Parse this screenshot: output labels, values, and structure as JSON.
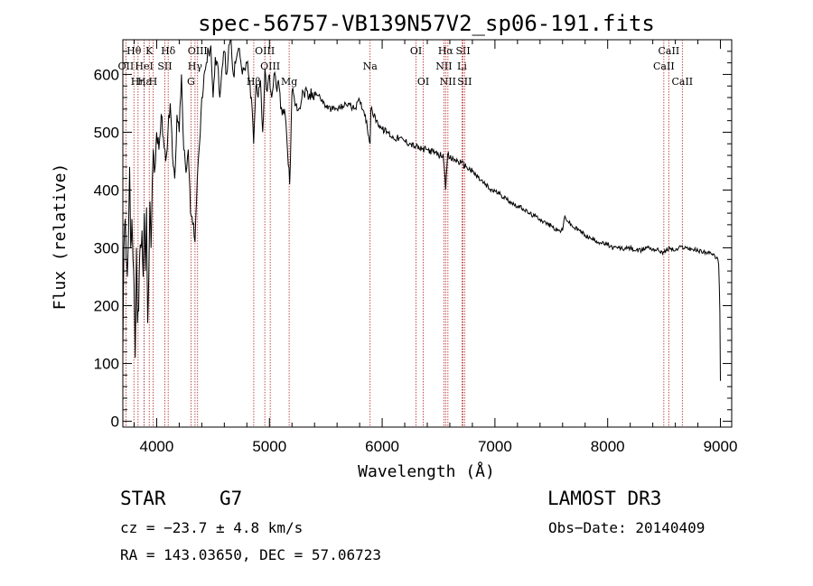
{
  "chart_data": {
    "type": "line",
    "title": "spec-56757-VB139N57V2_sp06-191.fits",
    "xlabel": "Wavelength (Å)",
    "ylabel": "Flux (relative)",
    "xlim": [
      3700,
      9100
    ],
    "ylim": [
      -10,
      660
    ],
    "xticks": [
      4000,
      5000,
      6000,
      7000,
      8000,
      9000
    ],
    "yticks": [
      0,
      100,
      200,
      300,
      400,
      500,
      600
    ],
    "grid": false,
    "series": [
      {
        "name": "spectrum",
        "x": [
          3700,
          3710,
          3720,
          3730,
          3740,
          3750,
          3760,
          3770,
          3780,
          3790,
          3800,
          3810,
          3820,
          3830,
          3840,
          3850,
          3860,
          3870,
          3880,
          3890,
          3900,
          3910,
          3920,
          3930,
          3940,
          3950,
          3960,
          3970,
          3980,
          3990,
          4000,
          4020,
          4040,
          4060,
          4080,
          4100,
          4120,
          4140,
          4160,
          4180,
          4200,
          4220,
          4240,
          4260,
          4280,
          4300,
          4320,
          4340,
          4360,
          4380,
          4400,
          4420,
          4440,
          4460,
          4480,
          4500,
          4520,
          4540,
          4560,
          4580,
          4600,
          4620,
          4640,
          4660,
          4680,
          4700,
          4720,
          4740,
          4760,
          4780,
          4800,
          4820,
          4840,
          4860,
          4880,
          4900,
          4920,
          4940,
          4960,
          4980,
          5000,
          5020,
          5040,
          5060,
          5080,
          5100,
          5120,
          5140,
          5160,
          5180,
          5200,
          5220,
          5240,
          5260,
          5280,
          5300,
          5350,
          5400,
          5450,
          5500,
          5550,
          5600,
          5650,
          5700,
          5750,
          5800,
          5850,
          5893,
          5900,
          5950,
          6000,
          6050,
          6100,
          6150,
          6200,
          6250,
          6300,
          6350,
          6400,
          6450,
          6500,
          6540,
          6563,
          6580,
          6600,
          6650,
          6700,
          6750,
          6800,
          6850,
          6900,
          6950,
          7000,
          7050,
          7100,
          7150,
          7200,
          7250,
          7300,
          7350,
          7400,
          7450,
          7500,
          7550,
          7600,
          7620,
          7650,
          7700,
          7750,
          7800,
          7850,
          7900,
          7950,
          8000,
          8050,
          8100,
          8150,
          8200,
          8250,
          8300,
          8350,
          8400,
          8450,
          8500,
          8550,
          8600,
          8650,
          8700,
          8750,
          8800,
          8850,
          8900,
          8950,
          8970,
          8985,
          8995,
          9000
        ],
        "values": [
          120,
          300,
          350,
          280,
          250,
          320,
          440,
          300,
          350,
          280,
          230,
          110,
          300,
          170,
          190,
          290,
          300,
          330,
          250,
          360,
          260,
          370,
          170,
          250,
          380,
          300,
          410,
          470,
          430,
          450,
          500,
          470,
          530,
          490,
          450,
          500,
          550,
          460,
          420,
          530,
          500,
          600,
          470,
          430,
          470,
          360,
          340,
          310,
          420,
          480,
          560,
          600,
          620,
          640,
          650,
          560,
          630,
          620,
          560,
          610,
          640,
          600,
          650,
          660,
          600,
          620,
          640,
          630,
          600,
          610,
          620,
          590,
          560,
          480,
          580,
          560,
          590,
          500,
          610,
          570,
          600,
          560,
          600,
          580,
          590,
          540,
          540,
          530,
          470,
          410,
          570,
          560,
          550,
          540,
          550,
          570,
          560,
          570,
          560,
          545,
          540,
          540,
          545,
          550,
          540,
          555,
          530,
          480,
          540,
          520,
          505,
          500,
          490,
          490,
          485,
          480,
          475,
          470,
          470,
          466,
          460,
          462,
          400,
          462,
          455,
          452,
          447,
          440,
          432,
          422,
          412,
          402,
          398,
          392,
          385,
          378,
          372,
          368,
          360,
          355,
          350,
          343,
          338,
          330,
          330,
          355,
          345,
          335,
          330,
          322,
          316,
          312,
          308,
          305,
          300,
          300,
          298,
          300,
          295,
          295,
          302,
          298,
          296,
          292,
          300,
          295,
          302,
          300,
          298,
          295,
          294,
          290,
          286,
          284,
          270,
          190,
          70
        ]
      }
    ],
    "line_markers": [
      {
        "label": "Hθ",
        "wavelength": 3798,
        "row": 0
      },
      {
        "label": "OII",
        "wavelength": 3727,
        "row": 1
      },
      {
        "label": "Hη",
        "wavelength": 3835,
        "row": 2
      },
      {
        "label": "Hε",
        "wavelength": 3889,
        "row": 2
      },
      {
        "label": "HeI",
        "wavelength": 3889,
        "row": 1
      },
      {
        "label": "K",
        "wavelength": 3934,
        "row": 0
      },
      {
        "label": "H",
        "wavelength": 3968,
        "row": 2
      },
      {
        "label": "Hδ",
        "wavelength": 4102,
        "row": 0
      },
      {
        "label": "SII",
        "wavelength": 4072,
        "row": 1
      },
      {
        "label": "OIII",
        "wavelength": 4363,
        "row": 0
      },
      {
        "label": "Hγ",
        "wavelength": 4340,
        "row": 1
      },
      {
        "label": "G",
        "wavelength": 4304,
        "row": 2
      },
      {
        "label": "OIII",
        "wavelength": 4959,
        "row": 0
      },
      {
        "label": "OIII",
        "wavelength": 5007,
        "row": 1
      },
      {
        "label": "Hβ",
        "wavelength": 4861,
        "row": 2
      },
      {
        "label": "Mg",
        "wavelength": 5175,
        "row": 2
      },
      {
        "label": "Na",
        "wavelength": 5893,
        "row": 1
      },
      {
        "label": "OI",
        "wavelength": 6300,
        "row": 0
      },
      {
        "label": "OI",
        "wavelength": 6364,
        "row": 2
      },
      {
        "label": "Hα",
        "wavelength": 6563,
        "row": 0
      },
      {
        "label": "NII",
        "wavelength": 6548,
        "row": 1
      },
      {
        "label": "NII",
        "wavelength": 6583,
        "row": 2
      },
      {
        "label": "SII",
        "wavelength": 6717,
        "row": 0
      },
      {
        "label": "Li",
        "wavelength": 6708,
        "row": 1
      },
      {
        "label": "SII",
        "wavelength": 6731,
        "row": 2
      },
      {
        "label": "CaII",
        "wavelength": 8542,
        "row": 0
      },
      {
        "label": "CaII",
        "wavelength": 8498,
        "row": 1
      },
      {
        "label": "CaII",
        "wavelength": 8662,
        "row": 2
      }
    ]
  },
  "info": {
    "object_class": "STAR",
    "subclass": "G7",
    "survey": "LAMOST DR3",
    "redshift": "cz = −23.7 ± 4.8 km/s",
    "obs_date": "Obs−Date: 20140409",
    "coords": "RA = 143.03650, DEC =  57.06723"
  }
}
